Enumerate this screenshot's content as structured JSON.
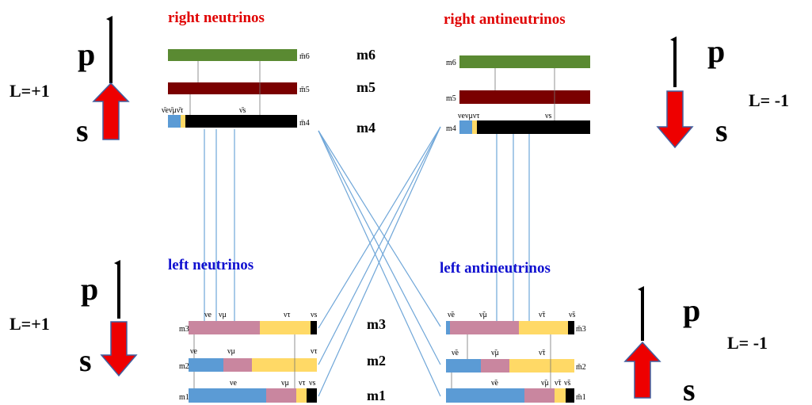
{
  "groups": {
    "right_neutrinos": {
      "title": "right neutrinos",
      "L": "L=+1",
      "p": "p",
      "s": "s",
      "bar_labels": [
        "m̄6",
        "m̄5",
        "m̄4"
      ],
      "flavors": [
        "ν̄eν̄μν̄τ",
        "ν̄s"
      ]
    },
    "right_antineutrinos": {
      "title": "right antineutrinos",
      "L": "L= -1",
      "p": "p",
      "s": "s",
      "bar_labels": [
        "m6",
        "m5",
        "m4"
      ],
      "flavors": [
        "νeνμντ",
        "νs"
      ]
    },
    "left_neutrinos": {
      "title": "left neutrinos",
      "L": "L=+1",
      "p": "p",
      "s": "s",
      "bar_labels": [
        "m3",
        "m2",
        "m1"
      ],
      "flavors": [
        "νe",
        "νμ",
        "ντ",
        "νs"
      ]
    },
    "left_antineutrinos": {
      "title": "left antineutrinos",
      "L": "L= -1",
      "p": "p",
      "s": "s",
      "bar_labels": [
        "m̃3",
        "m̃2",
        "m̃1"
      ],
      "flavors": [
        "ν̃e",
        "ν̃μ",
        "ν̃τ",
        "ν̃s"
      ]
    }
  },
  "mass_labels": [
    "m6",
    "m5",
    "m4",
    "m3",
    "m2",
    "m1"
  ]
}
